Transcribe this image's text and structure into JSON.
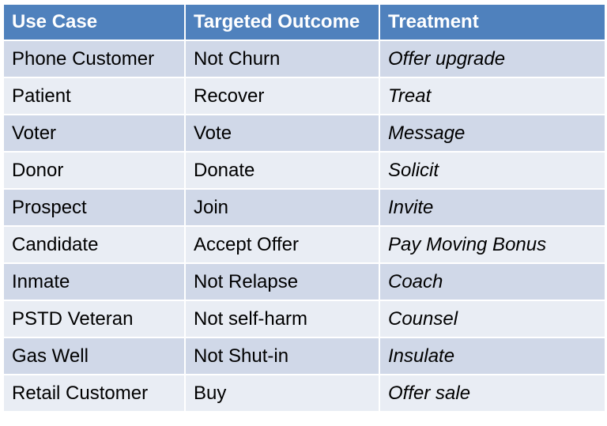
{
  "table": {
    "header": [
      "Use Case",
      "Targeted Outcome",
      "Treatment"
    ],
    "rows": [
      [
        "Phone Customer",
        "Not Churn",
        "Offer upgrade"
      ],
      [
        "Patient",
        "Recover",
        "Treat"
      ],
      [
        "Voter",
        "Vote",
        "Message"
      ],
      [
        "Donor",
        "Donate",
        "Solicit"
      ],
      [
        "Prospect",
        "Join",
        "Invite"
      ],
      [
        "Candidate",
        "Accept Offer",
        "Pay Moving Bonus"
      ],
      [
        "Inmate",
        "Not Relapse",
        "Coach"
      ],
      [
        "PSTD Veteran",
        "Not self-harm",
        "Counsel"
      ],
      [
        "Gas Well",
        "Not Shut-in",
        "Insulate"
      ],
      [
        "Retail Customer",
        "Buy",
        "Offer sale"
      ]
    ]
  }
}
